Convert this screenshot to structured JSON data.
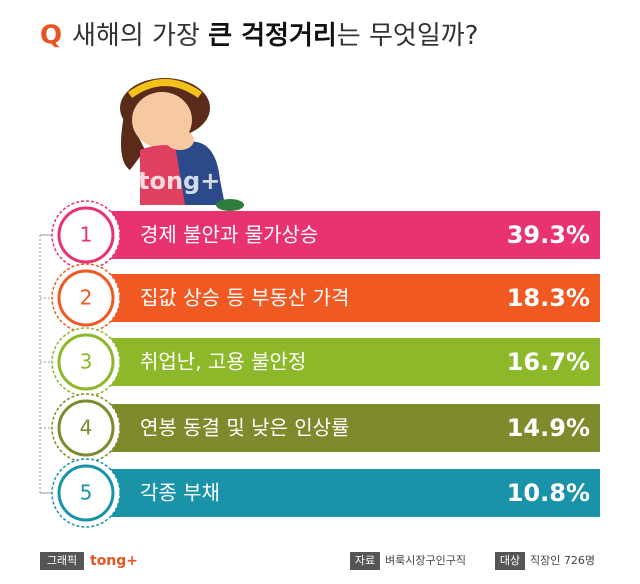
{
  "header": {
    "q": "Q",
    "pre": "새해의 가장 ",
    "em": "큰 걱정거리",
    "post": "는 무엇일까?"
  },
  "watermark": "tong+",
  "items": [
    {
      "rank": "1",
      "label": "경제 불안과 물가상승",
      "value": "39.3%",
      "color": "#e8336e"
    },
    {
      "rank": "2",
      "label": "집값 상승 등 부동산 가격",
      "value": "18.3%",
      "color": "#f05a22"
    },
    {
      "rank": "3",
      "label": "취업난, 고용 불안정",
      "value": "16.7%",
      "color": "#8cb82a"
    },
    {
      "rank": "4",
      "label": "연봉 동결 및 낮은 인상률",
      "value": "14.9%",
      "color": "#7f8a2c"
    },
    {
      "rank": "5",
      "label": "각종 부채",
      "value": "10.8%",
      "color": "#1a93a8"
    }
  ],
  "footer": {
    "graphic_tag": "그래픽",
    "brand": "tong+",
    "source_tag": "자료",
    "source": "벼룩시장구인구직",
    "target_tag": "대상",
    "target": "직장인 726명"
  }
}
